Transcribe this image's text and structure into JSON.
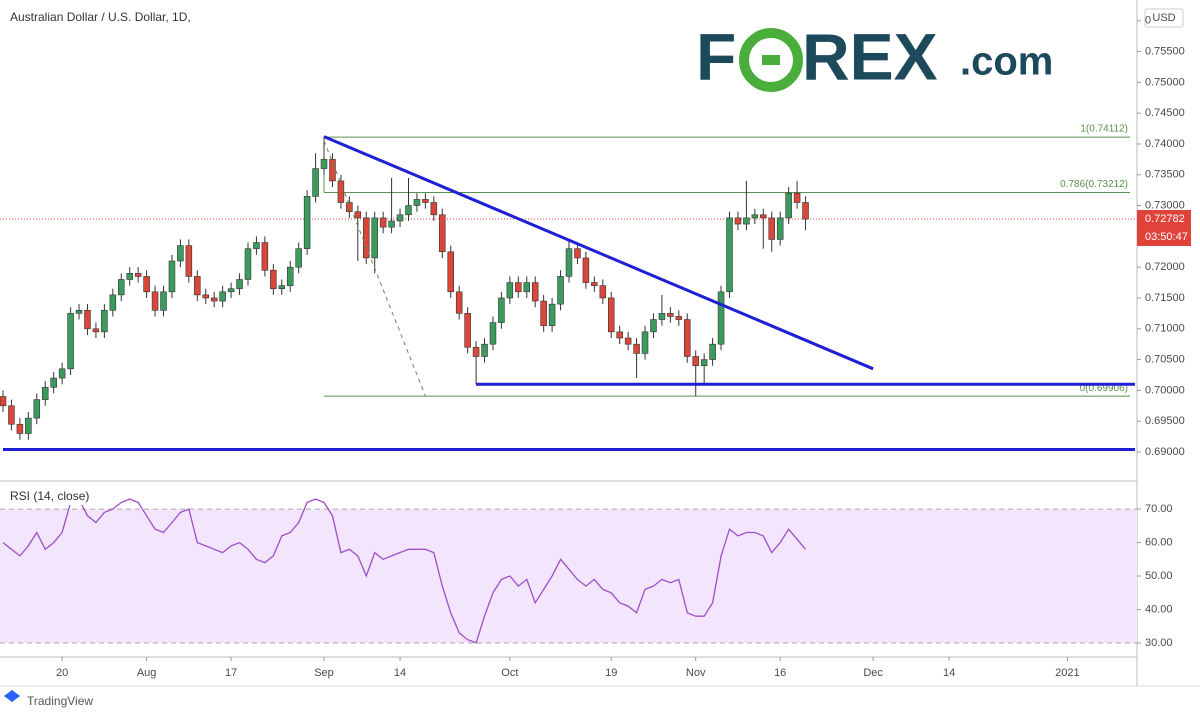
{
  "chart_data": [
    {
      "type": "candlestick",
      "title": "Australian Dollar / U.S. Dollar, 1D,",
      "currency": "USD",
      "xlim": [
        0,
        134
      ],
      "xticks": [
        {
          "value": 7,
          "label": "20"
        },
        {
          "value": 17,
          "label": "Aug"
        },
        {
          "value": 27,
          "label": "17"
        },
        {
          "value": 38,
          "label": "Sep"
        },
        {
          "value": 47,
          "label": "14"
        },
        {
          "value": 60,
          "label": "Oct"
        },
        {
          "value": 72,
          "label": "19"
        },
        {
          "value": 82,
          "label": "Nov"
        },
        {
          "value": 92,
          "label": "16"
        },
        {
          "value": 103,
          "label": "Dec"
        },
        {
          "value": 112,
          "label": "14"
        },
        {
          "value": 126,
          "label": "2021"
        }
      ],
      "ylim": [
        0.68545,
        0.76256
      ],
      "yticks": [
        {
          "value": 0.69,
          "label": "0.69000"
        },
        {
          "value": 0.695,
          "label": "0.69500"
        },
        {
          "value": 0.7,
          "label": "0.70000"
        },
        {
          "value": 0.705,
          "label": "0.70500"
        },
        {
          "value": 0.71,
          "label": "0.71000"
        },
        {
          "value": 0.715,
          "label": "0.71500"
        },
        {
          "value": 0.72,
          "label": "0.72000"
        },
        {
          "value": 0.725,
          "label": "0.72500"
        },
        {
          "value": 0.73,
          "label": "0.73000"
        },
        {
          "value": 0.735,
          "label": "0.73500"
        },
        {
          "value": 0.74,
          "label": "0.74000"
        },
        {
          "value": 0.745,
          "label": "0.74500"
        },
        {
          "value": 0.75,
          "label": "0.75000"
        },
        {
          "value": 0.755,
          "label": "0.75500"
        },
        {
          "value": 0.76,
          "label": "0"
        }
      ],
      "up_color": "#3d9a5f",
      "down_color": "#d9473b",
      "open": [
        0.699,
        0.6975,
        0.6945,
        0.693,
        0.6955,
        0.6985,
        0.7005,
        0.702,
        0.7035,
        0.7125,
        0.713,
        0.71,
        0.7095,
        0.713,
        0.7155,
        0.718,
        0.719,
        0.7185,
        0.716,
        0.713,
        0.716,
        0.721,
        0.7235,
        0.7185,
        0.7155,
        0.715,
        0.7145,
        0.716,
        0.7165,
        0.718,
        0.723,
        0.724,
        0.7195,
        0.7165,
        0.717,
        0.72,
        0.723,
        0.7315,
        0.736,
        0.7375,
        0.734,
        0.7305,
        0.729,
        0.728,
        0.7215,
        0.728,
        0.7265,
        0.7275,
        0.7285,
        0.73,
        0.731,
        0.7305,
        0.7285,
        0.7225,
        0.716,
        0.7125,
        0.707,
        0.7055,
        0.7075,
        0.711,
        0.715,
        0.7175,
        0.716,
        0.7175,
        0.7145,
        0.7105,
        0.714,
        0.7185,
        0.723,
        0.7215,
        0.7175,
        0.717,
        0.715,
        0.7095,
        0.7085,
        0.7075,
        0.706,
        0.7095,
        0.7115,
        0.7125,
        0.712,
        0.7115,
        0.7055,
        0.704,
        0.705,
        0.7075,
        0.716,
        0.728,
        0.727,
        0.728,
        0.7285,
        0.728,
        0.7245,
        0.728,
        0.732,
        0.7305
      ],
      "high": [
        0.7,
        0.6985,
        0.6955,
        0.6965,
        0.6995,
        0.7015,
        0.703,
        0.7045,
        0.7135,
        0.714,
        0.714,
        0.711,
        0.714,
        0.7165,
        0.719,
        0.72,
        0.72,
        0.7195,
        0.717,
        0.717,
        0.722,
        0.7245,
        0.7245,
        0.7195,
        0.7165,
        0.716,
        0.717,
        0.7175,
        0.719,
        0.724,
        0.725,
        0.725,
        0.7205,
        0.718,
        0.721,
        0.724,
        0.7325,
        0.7385,
        0.7412,
        0.7385,
        0.735,
        0.7315,
        0.73,
        0.729,
        0.729,
        0.729,
        0.7345,
        0.7295,
        0.7345,
        0.732,
        0.732,
        0.7315,
        0.7295,
        0.7235,
        0.717,
        0.7135,
        0.708,
        0.7085,
        0.712,
        0.716,
        0.7185,
        0.7185,
        0.7185,
        0.7185,
        0.7155,
        0.715,
        0.7195,
        0.7245,
        0.724,
        0.7225,
        0.7185,
        0.718,
        0.716,
        0.7105,
        0.7095,
        0.7085,
        0.7105,
        0.7125,
        0.7155,
        0.7135,
        0.713,
        0.7125,
        0.7065,
        0.706,
        0.7085,
        0.717,
        0.729,
        0.729,
        0.734,
        0.7295,
        0.7295,
        0.729,
        0.729,
        0.733,
        0.734,
        0.7315
      ],
      "low": [
        0.6965,
        0.6935,
        0.692,
        0.692,
        0.6945,
        0.6975,
        0.6995,
        0.701,
        0.7025,
        0.7115,
        0.709,
        0.7085,
        0.7085,
        0.712,
        0.7145,
        0.717,
        0.7175,
        0.715,
        0.712,
        0.712,
        0.715,
        0.72,
        0.7175,
        0.7145,
        0.714,
        0.7135,
        0.7135,
        0.715,
        0.7155,
        0.717,
        0.722,
        0.7185,
        0.7155,
        0.7155,
        0.716,
        0.719,
        0.722,
        0.7305,
        0.735,
        0.733,
        0.7295,
        0.728,
        0.721,
        0.7205,
        0.719,
        0.7255,
        0.7255,
        0.7265,
        0.7275,
        0.729,
        0.7295,
        0.7275,
        0.7215,
        0.715,
        0.7115,
        0.706,
        0.701,
        0.7045,
        0.7065,
        0.71,
        0.714,
        0.715,
        0.715,
        0.7135,
        0.7095,
        0.7095,
        0.713,
        0.7175,
        0.7205,
        0.7165,
        0.716,
        0.714,
        0.7085,
        0.7075,
        0.7065,
        0.702,
        0.705,
        0.7085,
        0.7105,
        0.711,
        0.7105,
        0.7045,
        0.6991,
        0.701,
        0.704,
        0.7065,
        0.715,
        0.726,
        0.726,
        0.727,
        0.723,
        0.7225,
        0.7235,
        0.727,
        0.7295,
        0.726
      ],
      "close": [
        0.6975,
        0.6945,
        0.693,
        0.6955,
        0.6985,
        0.7005,
        0.702,
        0.7035,
        0.7125,
        0.713,
        0.71,
        0.7095,
        0.713,
        0.7155,
        0.718,
        0.719,
        0.7185,
        0.716,
        0.713,
        0.716,
        0.721,
        0.7235,
        0.7185,
        0.7155,
        0.715,
        0.7145,
        0.716,
        0.7165,
        0.718,
        0.723,
        0.724,
        0.7195,
        0.7165,
        0.717,
        0.72,
        0.723,
        0.7315,
        0.736,
        0.7375,
        0.734,
        0.7305,
        0.729,
        0.728,
        0.7215,
        0.728,
        0.7265,
        0.7275,
        0.7285,
        0.73,
        0.731,
        0.7305,
        0.7285,
        0.7225,
        0.716,
        0.7125,
        0.707,
        0.7055,
        0.7075,
        0.711,
        0.715,
        0.7175,
        0.716,
        0.7175,
        0.7145,
        0.7105,
        0.714,
        0.7185,
        0.723,
        0.7215,
        0.7175,
        0.717,
        0.715,
        0.7095,
        0.7085,
        0.7075,
        0.706,
        0.7095,
        0.7115,
        0.7125,
        0.712,
        0.7115,
        0.7055,
        0.704,
        0.705,
        0.7075,
        0.716,
        0.728,
        0.727,
        0.728,
        0.7285,
        0.728,
        0.7245,
        0.728,
        0.732,
        0.7305,
        0.7278
      ],
      "last_price": 0.72782,
      "last_price_color": "#e0433a",
      "countdown": "03:50:47",
      "fib_levels": [
        {
          "label": "1(0.74112)",
          "value": 0.74112
        },
        {
          "label": "0.786(0.73212)",
          "value": 0.73212
        },
        {
          "label": "0(0.69906)",
          "value": 0.69906
        }
      ],
      "fib_start": 38,
      "fib_color": "#5b8f4e",
      "trend_lines": [
        {
          "color": "#1f1fd6",
          "points": [
            [
              38,
              0.7412
            ],
            [
              103,
              0.7035
            ]
          ]
        },
        {
          "color": "#1f1fd6",
          "points": [
            [
              56,
              0.701
            ],
            [
              134,
              0.701
            ]
          ]
        },
        {
          "color": "#1f1fd6",
          "points": [
            [
              0,
              0.6904
            ],
            [
              134,
              0.6904
            ]
          ]
        }
      ],
      "dashed_line": {
        "color": "#5b8f4e",
        "points": [
          [
            38,
            0.7405
          ],
          [
            50,
            0.6991
          ]
        ]
      },
      "logo": [
        "F",
        "REX",
        ".com"
      ]
    },
    {
      "type": "line",
      "title": "RSI (14, close)",
      "color": "#9c4fc9",
      "values": [
        60,
        58,
        56,
        59,
        63,
        58,
        60,
        63,
        72,
        73,
        68,
        66,
        69,
        70,
        72,
        73,
        72,
        68,
        64,
        63,
        66,
        69,
        70,
        60,
        59,
        58,
        57,
        59,
        60,
        58,
        55,
        54,
        56,
        62,
        63,
        66,
        72,
        73,
        72,
        68,
        57,
        58,
        56,
        50,
        57,
        55,
        56,
        57,
        58,
        58,
        58,
        57,
        47,
        39,
        33,
        31,
        30,
        38,
        45,
        49,
        50,
        47,
        49,
        42,
        46,
        50,
        55,
        52,
        49,
        47,
        49,
        46,
        45,
        42,
        41,
        39,
        46,
        47,
        49,
        48,
        49,
        39,
        38,
        38,
        42,
        56,
        64,
        62,
        63,
        63,
        62,
        57,
        60,
        64,
        61,
        58
      ],
      "ylim": [
        25.8,
        77.8
      ],
      "yticks": [
        {
          "value": 30,
          "label": "30.00"
        },
        {
          "value": 40,
          "label": "40.00"
        },
        {
          "value": 50,
          "label": "50.00"
        },
        {
          "value": 60,
          "label": "60.00"
        },
        {
          "value": 70,
          "label": "70.00"
        }
      ],
      "band": [
        30,
        70
      ]
    },
    {
      "footer": "TradingView"
    }
  ]
}
